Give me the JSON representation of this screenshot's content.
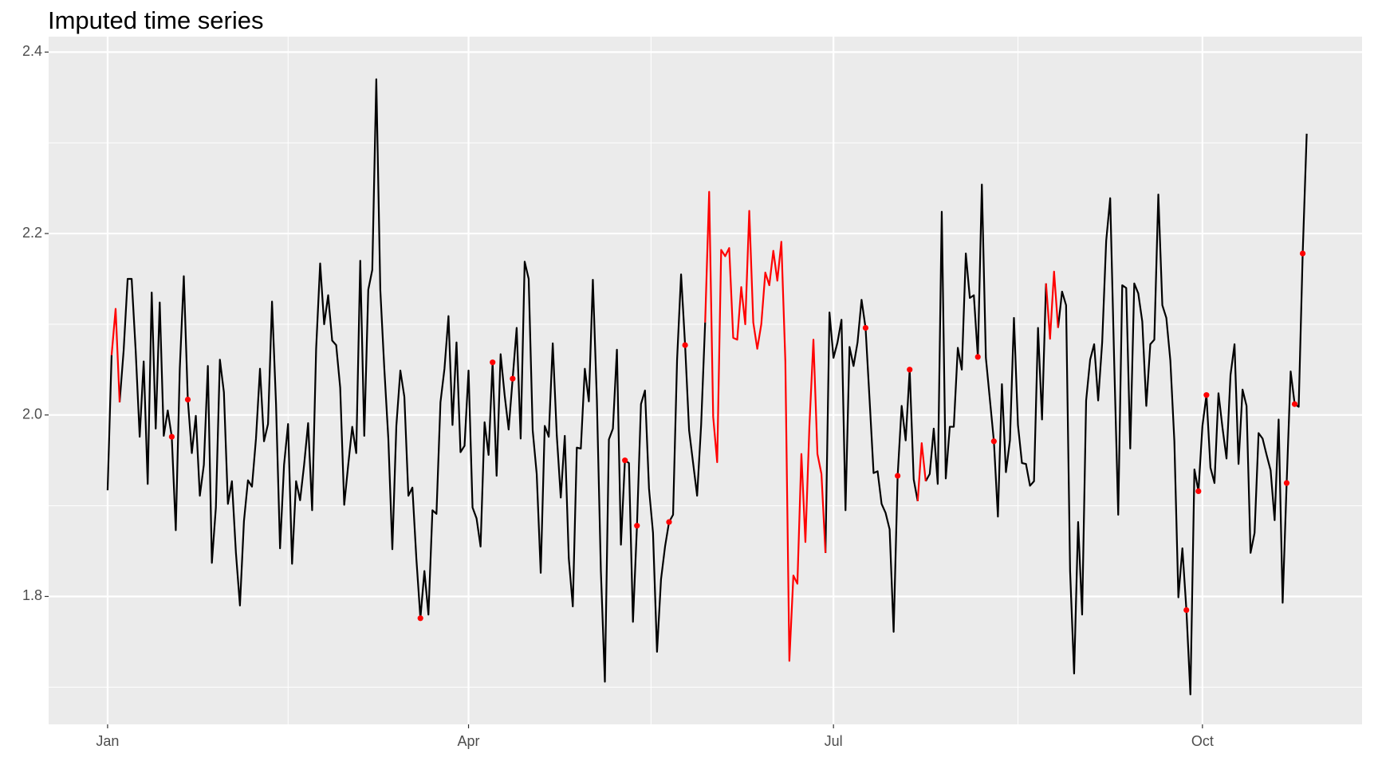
{
  "chart_data": {
    "type": "line",
    "title": "Imputed time series",
    "x": [
      0,
      1,
      2,
      3,
      4,
      5,
      6,
      7,
      8,
      9,
      10,
      11,
      12,
      13,
      14,
      15,
      16,
      17,
      18,
      19,
      20,
      21,
      22,
      23,
      24,
      25,
      26,
      27,
      28,
      29,
      30,
      31,
      32,
      33,
      34,
      35,
      36,
      37,
      38,
      39,
      40,
      41,
      42,
      43,
      44,
      45,
      46,
      47,
      48,
      49,
      50,
      51,
      52,
      53,
      54,
      55,
      56,
      57,
      58,
      59,
      60,
      61,
      62,
      63,
      64,
      65,
      66,
      67,
      68,
      69,
      70,
      71,
      72,
      73,
      74,
      75,
      76,
      77,
      78,
      79,
      80,
      81,
      82,
      83,
      84,
      85,
      86,
      87,
      88,
      89,
      90,
      91,
      92,
      93,
      94,
      95,
      96,
      97,
      98,
      99,
      100,
      101,
      102,
      103,
      104,
      105,
      106,
      107,
      108,
      109,
      110,
      111,
      112,
      113,
      114,
      115,
      116,
      117,
      118,
      119,
      120,
      121,
      122,
      123,
      124,
      125,
      126,
      127,
      128,
      129,
      130,
      131,
      132,
      133,
      134,
      135,
      136,
      137,
      138,
      139,
      140,
      141,
      142,
      143,
      144,
      145,
      146,
      147,
      148,
      149,
      150,
      151,
      152,
      153,
      154,
      155,
      156,
      157,
      158,
      159,
      160,
      161,
      162,
      163,
      164,
      165,
      166,
      167,
      168,
      169,
      170,
      171,
      172,
      173,
      174,
      175,
      176,
      177,
      178,
      179,
      180,
      181,
      182,
      183,
      184,
      185,
      186,
      187,
      188,
      189,
      190,
      191,
      192,
      193,
      194,
      195,
      196,
      197,
      198,
      199,
      200,
      201,
      202,
      203,
      204,
      205,
      206,
      207,
      208,
      209,
      210,
      211,
      212,
      213,
      214,
      215,
      216,
      217,
      218,
      219,
      220,
      221,
      222,
      223,
      224,
      225,
      226,
      227,
      228,
      229,
      230,
      231,
      232,
      233,
      234,
      235,
      236,
      237,
      238,
      239,
      240,
      241,
      242,
      243,
      244,
      245,
      246,
      247,
      248,
      249,
      250,
      251,
      252,
      253,
      254,
      255,
      256,
      257,
      258,
      259,
      260,
      261,
      262,
      263,
      264,
      265,
      266,
      267,
      268,
      269,
      270,
      271,
      272,
      273,
      274,
      275,
      276,
      277,
      278,
      279,
      280,
      281,
      282,
      283,
      284,
      285,
      286,
      287,
      288,
      289,
      290,
      291,
      292,
      293,
      294,
      295,
      296,
      297,
      298,
      299
    ],
    "series": [
      {
        "color": "#000000",
        "mode": "line",
        "values": [
          1.917,
          2.066,
          null,
          2.014,
          2.071,
          2.15,
          2.15,
          2.071,
          1.976,
          2.059,
          1.924,
          2.135,
          1.985,
          2.124,
          1.977,
          2.005,
          1.976,
          1.873,
          2.051,
          2.153,
          2.017,
          1.958,
          1.999,
          1.911,
          1.945,
          2.054,
          1.837,
          1.898,
          2.061,
          2.025,
          1.902,
          1.927,
          1.848,
          1.79,
          1.883,
          1.928,
          1.921,
          1.974,
          2.051,
          1.971,
          1.99,
          2.125,
          2.012,
          1.853,
          1.945,
          1.99,
          1.836,
          1.927,
          1.906,
          1.945,
          1.991,
          1.895,
          2.073,
          2.167,
          2.1,
          2.132,
          2.082,
          2.077,
          2.03,
          1.901,
          1.945,
          1.987,
          1.958,
          2.17,
          1.977,
          2.138,
          2.16,
          2.37,
          2.138,
          2.051,
          1.974,
          1.852,
          1.988,
          2.049,
          2.02,
          1.911,
          1.92,
          1.841,
          1.776,
          1.828,
          1.78,
          1.895,
          1.891,
          2.014,
          2.051,
          2.109,
          1.989,
          2.08,
          1.959,
          1.966,
          2.049,
          1.898,
          1.886,
          1.855,
          1.992,
          1.956,
          2.058,
          1.933,
          2.067,
          2.022,
          1.984,
          2.04,
          2.096,
          1.974,
          2.169,
          2.15,
          1.983,
          1.935,
          1.826,
          1.988,
          1.976,
          2.079,
          1.978,
          1.909,
          1.977,
          1.842,
          1.789,
          1.964,
          1.963,
          2.051,
          2.015,
          2.149,
          2.017,
          1.828,
          1.706,
          1.973,
          1.985,
          2.072,
          1.857,
          1.95,
          1.947,
          1.772,
          1.878,
          2.012,
          2.027,
          1.919,
          1.87,
          1.739,
          1.819,
          1.855,
          1.882,
          1.89,
          2.061,
          2.155,
          2.077,
          1.983,
          1.947,
          1.911,
          1.989,
          2.102,
          null,
          null,
          null,
          null,
          null,
          null,
          null,
          null,
          null,
          null,
          null,
          null,
          null,
          null,
          null,
          null,
          null,
          null,
          null,
          null,
          null,
          null,
          null,
          null,
          null,
          null,
          null,
          null,
          null,
          1.848,
          2.113,
          2.063,
          2.08,
          2.105,
          1.895,
          2.075,
          2.054,
          2.08,
          2.127,
          2.096,
          2.017,
          1.936,
          1.938,
          1.902,
          1.892,
          1.874,
          1.761,
          1.933,
          2.01,
          1.972,
          2.05,
          1.929,
          1.905,
          null,
          1.927,
          1.935,
          1.985,
          1.924,
          2.224,
          1.93,
          1.987,
          1.987,
          2.074,
          2.05,
          2.178,
          2.129,
          2.132,
          2.064,
          2.254,
          2.063,
          2.017,
          1.971,
          1.888,
          2.034,
          1.937,
          1.972,
          2.107,
          1.989,
          1.947,
          1.946,
          1.922,
          1.927,
          2.096,
          1.995,
          2.145,
          null,
          null,
          2.096,
          2.136,
          2.121,
          1.828,
          1.715,
          1.882,
          1.78,
          2.016,
          2.061,
          2.078,
          2.016,
          2.08,
          2.192,
          2.239,
          2.058,
          1.89,
          2.143,
          2.14,
          1.963,
          2.145,
          2.134,
          2.103,
          2.01,
          2.078,
          2.083,
          2.243,
          2.121,
          2.107,
          2.06,
          1.971,
          1.799,
          1.853,
          1.785,
          1.692,
          1.94,
          1.916,
          1.988,
          2.022,
          1.942,
          1.925,
          2.024,
          1.986,
          1.952,
          2.044,
          2.078,
          1.946,
          2.028,
          2.01,
          1.848,
          1.87,
          1.98,
          1.974,
          1.956,
          1.939,
          1.884,
          1.995,
          1.793,
          1.925,
          2.048,
          2.012,
          2.009,
          2.178,
          2.31
        ]
      },
      {
        "color": "#ff0000",
        "mode": "line",
        "x": [
          1,
          2,
          3
        ],
        "values": [
          2.066,
          2.117,
          2.014
        ]
      },
      {
        "color": "#ff0000",
        "mode": "line",
        "x": [
          149,
          150,
          151,
          152,
          153,
          154,
          155,
          156,
          157,
          158,
          159,
          160,
          161,
          162,
          163,
          164,
          165,
          166,
          167,
          168,
          169,
          170,
          171,
          172,
          173,
          174,
          175,
          176,
          177,
          178,
          179
        ],
        "values": [
          2.102,
          2.246,
          1.998,
          1.948,
          2.182,
          2.175,
          2.184,
          2.085,
          2.083,
          2.141,
          2.1,
          2.225,
          2.102,
          2.073,
          2.1,
          2.157,
          2.143,
          2.181,
          2.148,
          2.191,
          2.059,
          1.729,
          1.823,
          1.814,
          1.957,
          1.86,
          1.988,
          2.083,
          1.957,
          1.935,
          1.848
        ]
      },
      {
        "color": "#ff0000",
        "mode": "line",
        "x": [
          202,
          203,
          204
        ],
        "values": [
          1.905,
          1.969,
          1.927
        ]
      },
      {
        "color": "#ff0000",
        "mode": "line",
        "x": [
          234,
          235,
          236,
          237
        ],
        "values": [
          2.145,
          2.084,
          2.158,
          2.096
        ]
      },
      {
        "color": "#ff0000",
        "mode": "points",
        "x": [
          16,
          20,
          78,
          96,
          101,
          129,
          132,
          140,
          144,
          189,
          197,
          200,
          217,
          221,
          269,
          272,
          274,
          294,
          296,
          298
        ],
        "values": [
          1.976,
          2.017,
          1.776,
          2.058,
          2.04,
          1.95,
          1.878,
          1.882,
          2.077,
          2.096,
          1.933,
          2.05,
          2.064,
          1.971,
          1.785,
          1.916,
          2.022,
          1.925,
          2.012,
          2.178
        ]
      }
    ],
    "xlim": [
      -14.7,
      312.8
    ],
    "xticks": [
      {
        "value": 0,
        "label": "Jan"
      },
      {
        "value": 90,
        "label": "Apr"
      },
      {
        "value": 181,
        "label": "Jul"
      },
      {
        "value": 273,
        "label": "Oct"
      }
    ],
    "xminor": [
      45,
      135.5,
      227
    ],
    "ylim": [
      1.659,
      2.417
    ],
    "yticks": [
      1.8,
      {
        "value": 2.0,
        "label": "2.0"
      },
      2.2,
      2.4
    ],
    "yminor": [
      1.7,
      1.9,
      2.1,
      2.3
    ],
    "grid": true
  }
}
